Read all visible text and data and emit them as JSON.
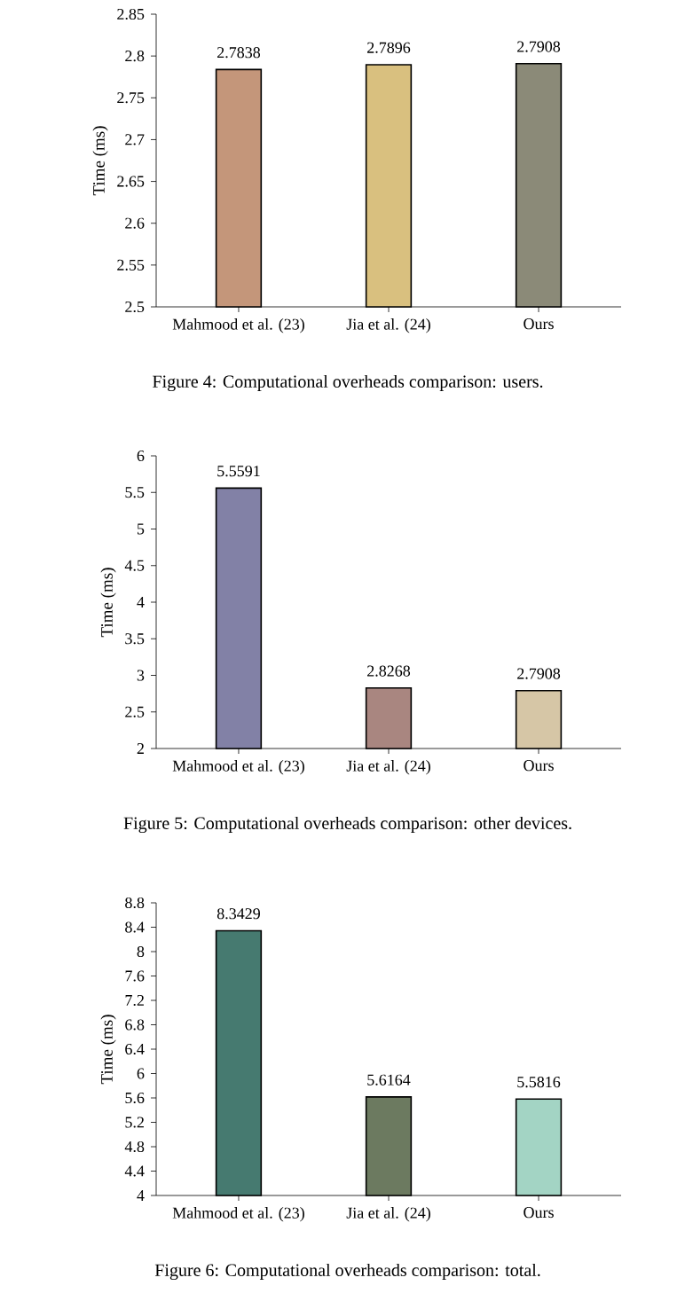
{
  "chart_data": [
    {
      "type": "bar",
      "ylabel": "Time (ms)",
      "categories": [
        "Mahmood et al. (23)",
        "Jia et al. (24)",
        "Ours"
      ],
      "values": [
        2.7838,
        2.7896,
        2.7908
      ],
      "colors": [
        "#c4967a",
        "#d9c07f",
        "#8b8a78"
      ],
      "ylim": [
        2.5,
        2.85
      ],
      "yticks": [
        2.5,
        2.55,
        2.6,
        2.65,
        2.7,
        2.75,
        2.8,
        2.85
      ],
      "data_labels": true,
      "annotations": [
        "Figure 4: Computational overheads comparison: users."
      ]
    },
    {
      "type": "bar",
      "ylabel": "Time (ms)",
      "categories": [
        "Mahmood et al. (23)",
        "Jia et al. (24)",
        "Ours"
      ],
      "values": [
        5.5591,
        2.8268,
        2.7908
      ],
      "colors": [
        "#8281a6",
        "#a98680",
        "#d6c6a6"
      ],
      "ylim": [
        2,
        6
      ],
      "yticks": [
        2,
        2.5,
        3,
        3.5,
        4,
        4.5,
        5,
        5.5,
        6
      ],
      "data_labels": true,
      "annotations": [
        "Figure 5: Computational overheads comparison: other devices."
      ]
    },
    {
      "type": "bar",
      "ylabel": "Time (ms)",
      "categories": [
        "Mahmood et al. (23)",
        "Jia et al. (24)",
        "Ours"
      ],
      "values": [
        8.3429,
        5.6164,
        5.5816
      ],
      "colors": [
        "#467a70",
        "#6c7a60",
        "#a3d4c4"
      ],
      "ylim": [
        4,
        8.8
      ],
      "yticks": [
        4,
        4.4,
        4.8,
        5.2,
        5.6,
        6,
        6.4,
        6.8,
        7.2,
        7.6,
        8,
        8.4,
        8.8
      ],
      "data_labels": true,
      "annotations": [
        "Figure 6: Computational overheads comparison: total."
      ]
    }
  ]
}
